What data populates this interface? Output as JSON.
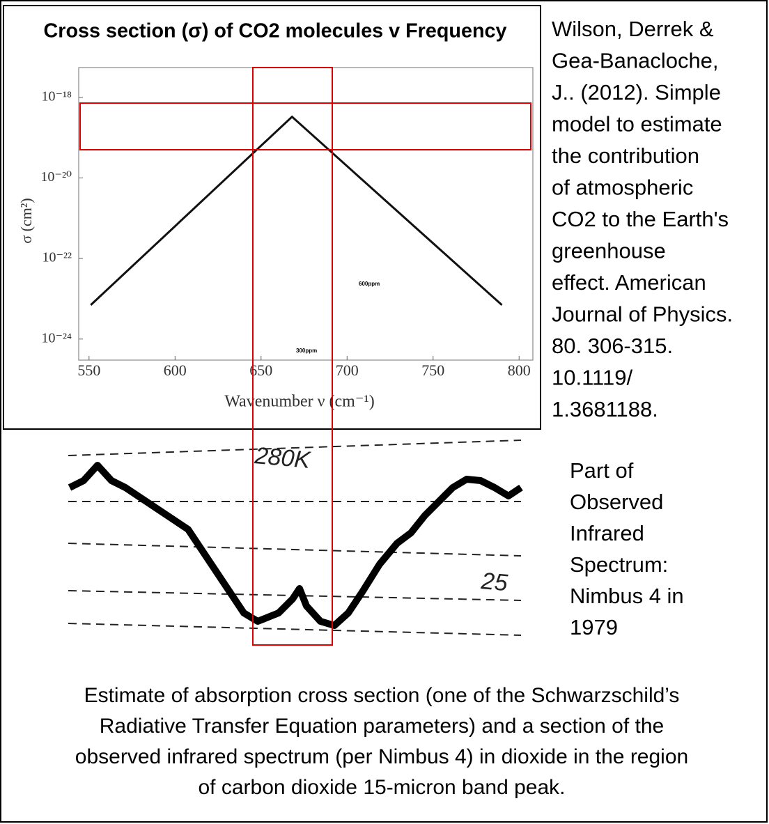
{
  "chart_data": {
    "type": "line",
    "title": "Cross section (σ) of CO2 molecules v Frequency",
    "x_label": "Wavenumber ν (cm⁻¹)",
    "y_label": "σ (cm²)",
    "x": [
      551,
      668,
      790
    ],
    "series": [
      {
        "color": "#111111",
        "values": [
          7e-24,
          3.3e-19,
          7e-24
        ]
      }
    ],
    "xlim": [
      544,
      808
    ],
    "xticks": [
      550,
      600,
      650,
      700,
      750,
      800
    ],
    "ylim": [
      3e-25,
      5.5e-18
    ],
    "log_y": true,
    "yticks": [
      {
        "value": 1e-18,
        "label": "10⁻¹⁸"
      },
      {
        "value": 1e-20,
        "label": "10⁻²⁰"
      },
      {
        "value": 1e-22,
        "label": "10⁻²²"
      },
      {
        "value": 1e-24,
        "label": "10⁻²⁴"
      }
    ],
    "annotations": [
      "600ppm",
      "300ppm"
    ]
  },
  "citation": [
    "Wilson, Derrek &",
    "Gea-Banacloche,",
    "J.. (2012). Simple",
    "model to estimate",
    "the contribution",
    "of atmospheric",
    "CO2 to the Earth's",
    "greenhouse",
    "effect. American",
    "Journal of Physics.",
    "80. 306-315.",
    "10.1119/",
    "1.3681188."
  ],
  "spectrum": {
    "labels": [
      "280K",
      "25"
    ],
    "description": [
      "Part of",
      "Observed",
      "Infrared",
      "Spectrum:",
      "Nimbus 4 in",
      "1979"
    ]
  },
  "caption": [
    "Estimate of absorption cross section (one of the Schwarzschild’s",
    "Radiative Transfer Equation parameters) and a section of the",
    "observed infrared spectrum (per Nimbus 4) in dioxide in the region",
    "of carbon dioxide 15-micron band peak."
  ]
}
